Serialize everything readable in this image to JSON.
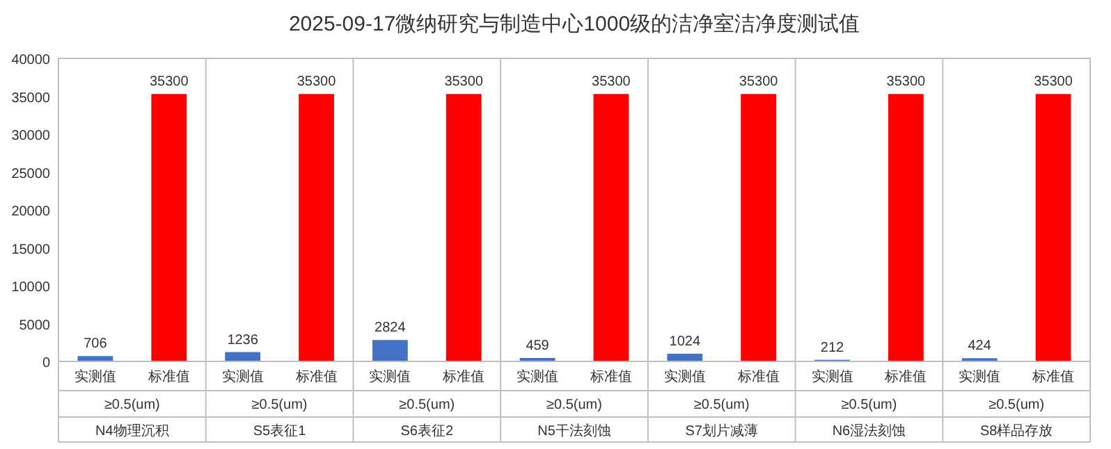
{
  "chart_data": {
    "type": "bar",
    "title": "2025-09-17微纳研究与制造中心1000级的洁净室洁净度测试值",
    "categories": [
      "实测值",
      "标准值",
      "实测值",
      "标准值",
      "实测值",
      "标准值",
      "实测值",
      "标准值",
      "实测值",
      "标准值",
      "实测值",
      "标准值",
      "实测值",
      "标准值"
    ],
    "values": [
      706,
      35300,
      1236,
      35300,
      2824,
      35300,
      459,
      35300,
      1024,
      35300,
      212,
      35300,
      424,
      35300
    ],
    "colors": [
      "#4472c4",
      "#ff0000",
      "#4472c4",
      "#ff0000",
      "#4472c4",
      "#ff0000",
      "#4472c4",
      "#ff0000",
      "#4472c4",
      "#ff0000",
      "#4472c4",
      "#ff0000",
      "#4472c4",
      "#ff0000"
    ],
    "ylim": [
      0,
      40000
    ],
    "yticks": [
      0,
      5000,
      10000,
      15000,
      20000,
      25000,
      30000,
      35000,
      40000
    ],
    "data_labels": true,
    "grid": false,
    "annotations": [
      "≥0.5(um)",
      "≥0.5(um)",
      "≥0.5(um)",
      "≥0.5(um)",
      "≥0.5(um)",
      "≥0.5(um)",
      "≥0.5(um)",
      "N4物理沉积",
      "S5表征1",
      "S6表征2",
      "N5干法刻蚀",
      "S7划片减薄",
      "N6湿法刻蚀",
      "S8样品存放"
    ]
  }
}
